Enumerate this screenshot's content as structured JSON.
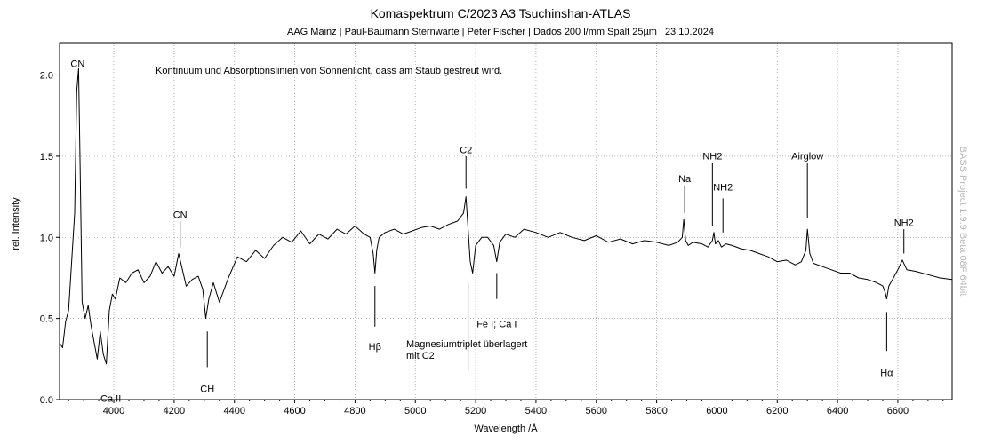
{
  "chart_data": {
    "type": "line",
    "title": "Komaspektrum C/2023 A3 Tsuchinshan-ATLAS",
    "subtitle": "AAG Mainz | Paul-Baumann Sternwarte | Peter Fischer |  Dados 200 l/mm Spalt 25µm | 23.10.2024",
    "xlabel": "Wavelength /Å",
    "ylabel": "rel. Intensity",
    "xlim": [
      3820,
      6780
    ],
    "ylim": [
      0,
      2.2
    ],
    "x_ticks": [
      4000,
      4200,
      4400,
      4600,
      4800,
      5000,
      5200,
      5400,
      5600,
      5800,
      6000,
      6200,
      6400,
      6600
    ],
    "x_tick_labels": [
      "4000",
      "4200",
      "4400",
      "4600",
      "4800",
      "5000",
      "5200",
      "5400",
      "5600",
      "5800",
      "6000",
      "6200",
      "6400",
      "6600"
    ],
    "y_ticks": [
      0,
      0.5,
      1.0,
      1.5,
      2.0
    ],
    "y_tick_labels": [
      "0.0",
      "0.5",
      "1.0",
      "1.5",
      "2.0"
    ],
    "grid": true,
    "note": "Kontinuum und Absorptionslinien von Sonnenlicht, dass am Staub gestreut wird.",
    "watermark": "BASS Project 1.9.9 Beta 08F 64bit",
    "line_color": "#000000",
    "grid_color": "#a0a0a0",
    "series": [
      {
        "x": [
          3820,
          3830,
          3840,
          3850,
          3860,
          3870,
          3877,
          3883,
          3888,
          3895,
          3905,
          3915,
          3925,
          3935,
          3945,
          3955,
          3965,
          3975,
          3985,
          3995,
          4005,
          4020,
          4040,
          4060,
          4080,
          4100,
          4120,
          4140,
          4160,
          4180,
          4200,
          4215,
          4225,
          4240,
          4260,
          4280,
          4295,
          4305,
          4315,
          4330,
          4350,
          4380,
          4410,
          4440,
          4470,
          4500,
          4530,
          4560,
          4590,
          4620,
          4650,
          4680,
          4710,
          4740,
          4770,
          4800,
          4830,
          4850,
          4860,
          4866,
          4872,
          4880,
          4900,
          4930,
          4960,
          4990,
          5020,
          5050,
          5080,
          5110,
          5140,
          5160,
          5168,
          5175,
          5182,
          5190,
          5200,
          5220,
          5240,
          5260,
          5270,
          5280,
          5300,
          5330,
          5360,
          5400,
          5440,
          5480,
          5520,
          5560,
          5600,
          5640,
          5680,
          5720,
          5760,
          5800,
          5840,
          5870,
          5885,
          5890,
          5896,
          5905,
          5920,
          5950,
          5970,
          5985,
          5990,
          5995,
          6005,
          6015,
          6030,
          6050,
          6080,
          6110,
          6140,
          6170,
          6200,
          6230,
          6260,
          6280,
          6295,
          6300,
          6308,
          6320,
          6350,
          6380,
          6410,
          6440,
          6470,
          6500,
          6530,
          6550,
          6558,
          6563,
          6570,
          6585,
          6600,
          6615,
          6630,
          6660,
          6700,
          6740,
          6780
        ],
        "values": [
          0.35,
          0.32,
          0.48,
          0.55,
          0.85,
          1.15,
          1.9,
          2.04,
          1.45,
          0.6,
          0.5,
          0.58,
          0.45,
          0.35,
          0.25,
          0.42,
          0.28,
          0.22,
          0.55,
          0.65,
          0.62,
          0.75,
          0.72,
          0.78,
          0.8,
          0.72,
          0.76,
          0.85,
          0.78,
          0.82,
          0.76,
          0.9,
          0.82,
          0.7,
          0.74,
          0.76,
          0.68,
          0.5,
          0.62,
          0.72,
          0.6,
          0.75,
          0.88,
          0.85,
          0.92,
          0.87,
          0.95,
          1.0,
          0.97,
          1.04,
          0.96,
          1.02,
          0.99,
          1.05,
          1.02,
          1.07,
          1.02,
          1.0,
          0.9,
          0.78,
          0.92,
          1.0,
          1.03,
          1.05,
          1.02,
          1.04,
          1.06,
          1.07,
          1.05,
          1.08,
          1.1,
          1.15,
          1.25,
          1.05,
          0.85,
          0.78,
          0.95,
          1.0,
          1.0,
          0.95,
          0.85,
          0.97,
          1.02,
          1.0,
          1.05,
          1.03,
          1.0,
          1.03,
          1.0,
          0.98,
          1.01,
          0.97,
          0.99,
          0.96,
          0.98,
          0.97,
          0.95,
          0.97,
          1.0,
          1.11,
          0.98,
          0.95,
          0.97,
          0.96,
          0.94,
          0.98,
          1.03,
          0.96,
          0.98,
          0.94,
          0.96,
          0.95,
          0.93,
          0.92,
          0.9,
          0.88,
          0.85,
          0.86,
          0.83,
          0.85,
          0.92,
          1.05,
          0.9,
          0.84,
          0.82,
          0.8,
          0.78,
          0.78,
          0.75,
          0.74,
          0.72,
          0.7,
          0.66,
          0.62,
          0.7,
          0.75,
          0.8,
          0.86,
          0.8,
          0.79,
          0.77,
          0.75,
          0.74
        ]
      }
    ],
    "annotations": [
      {
        "label": "CN",
        "x": 3880,
        "line_y1": 1.98,
        "line_y2": 1.98,
        "text_y": 2.05,
        "anchor": "above"
      },
      {
        "label": "CN",
        "x": 4220,
        "line_y1": 0.94,
        "line_y2": 1.1,
        "text_y": 1.12,
        "anchor": "above"
      },
      {
        "label": "CH",
        "x": 4310,
        "line_y1": 0.42,
        "line_y2": 0.2,
        "text_y": 0.1,
        "anchor": "below"
      },
      {
        "label": "Ca II",
        "x": 3990,
        "line_y1": 0.22,
        "line_y2": 0.22,
        "text_y": 0.04,
        "anchor": "below"
      },
      {
        "label": "Hβ",
        "x": 4866,
        "line_y1": 0.7,
        "line_y2": 0.45,
        "text_y": 0.36,
        "anchor": "below"
      },
      {
        "label": "C2",
        "x": 5168,
        "line_y1": 1.3,
        "line_y2": 1.5,
        "text_y": 1.52,
        "anchor": "above"
      },
      {
        "label": "Fe I; Ca I",
        "x": 5270,
        "line_y1": 0.78,
        "line_y2": 0.62,
        "text_y": 0.5,
        "anchor": "below"
      },
      {
        "label": "Na",
        "x": 5893,
        "line_y1": 1.15,
        "line_y2": 1.32,
        "text_y": 1.34,
        "anchor": "above"
      },
      {
        "label": "NH2",
        "x": 5985,
        "line_y1": 1.07,
        "line_y2": 1.46,
        "text_y": 1.48,
        "anchor": "above"
      },
      {
        "label": "NH2",
        "x": 6020,
        "line_y1": 1.03,
        "line_y2": 1.24,
        "text_y": 1.29,
        "anchor": "above"
      },
      {
        "label": "Airglow",
        "x": 6300,
        "line_y1": 1.12,
        "line_y2": 1.46,
        "text_y": 1.48,
        "anchor": "above"
      },
      {
        "label": "NH2",
        "x": 6620,
        "line_y1": 0.9,
        "line_y2": 1.05,
        "text_y": 1.07,
        "anchor": "above"
      },
      {
        "label": "Hα",
        "x": 6563,
        "line_y1": 0.54,
        "line_y2": 0.3,
        "text_y": 0.2,
        "anchor": "below"
      }
    ],
    "mg_annotation": {
      "x": 5175,
      "line_y1": 0.72,
      "line_y2": 0.18,
      "lines": [
        "Magnesiumtriplet überlagert",
        "mit C2"
      ]
    }
  }
}
